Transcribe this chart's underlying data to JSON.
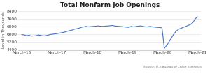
{
  "title": "Total Nonfarm Job Openings",
  "ylabel": "Level in Thousands",
  "source": "Source: U.S Bureau of Labor Statistics",
  "x_tick_labels": [
    "March-16",
    "March-17",
    "March-18",
    "March-19",
    "March-20",
    "March-21"
  ],
  "y_ticks": [
    4400,
    5200,
    6000,
    6800,
    7600,
    8400
  ],
  "ylim": [
    4300,
    8600
  ],
  "line_color": "#4472C4",
  "line_width": 0.8,
  "background_color": "#ffffff",
  "series": [
    5940,
    5900,
    5820,
    5870,
    5780,
    5800,
    5820,
    5900,
    5850,
    5800,
    5820,
    5880,
    5950,
    5980,
    6020,
    6050,
    6100,
    6150,
    6200,
    6280,
    6350,
    6400,
    6500,
    6550,
    6600,
    6700,
    6750,
    6800,
    6750,
    6780,
    6800,
    6820,
    6850,
    6820,
    6800,
    6820,
    6840,
    6860,
    6900,
    6850,
    6820,
    6800,
    6780,
    6750,
    6720,
    6700,
    6800,
    6750,
    6780,
    6820,
    6850,
    6800,
    6750,
    6750,
    6800,
    6750,
    6720,
    6700,
    6680,
    6650,
    4500,
    4800,
    5200,
    5600,
    6000,
    6300,
    6500,
    6600,
    6700,
    6800,
    6900,
    7000,
    7200,
    7600,
    7800
  ]
}
